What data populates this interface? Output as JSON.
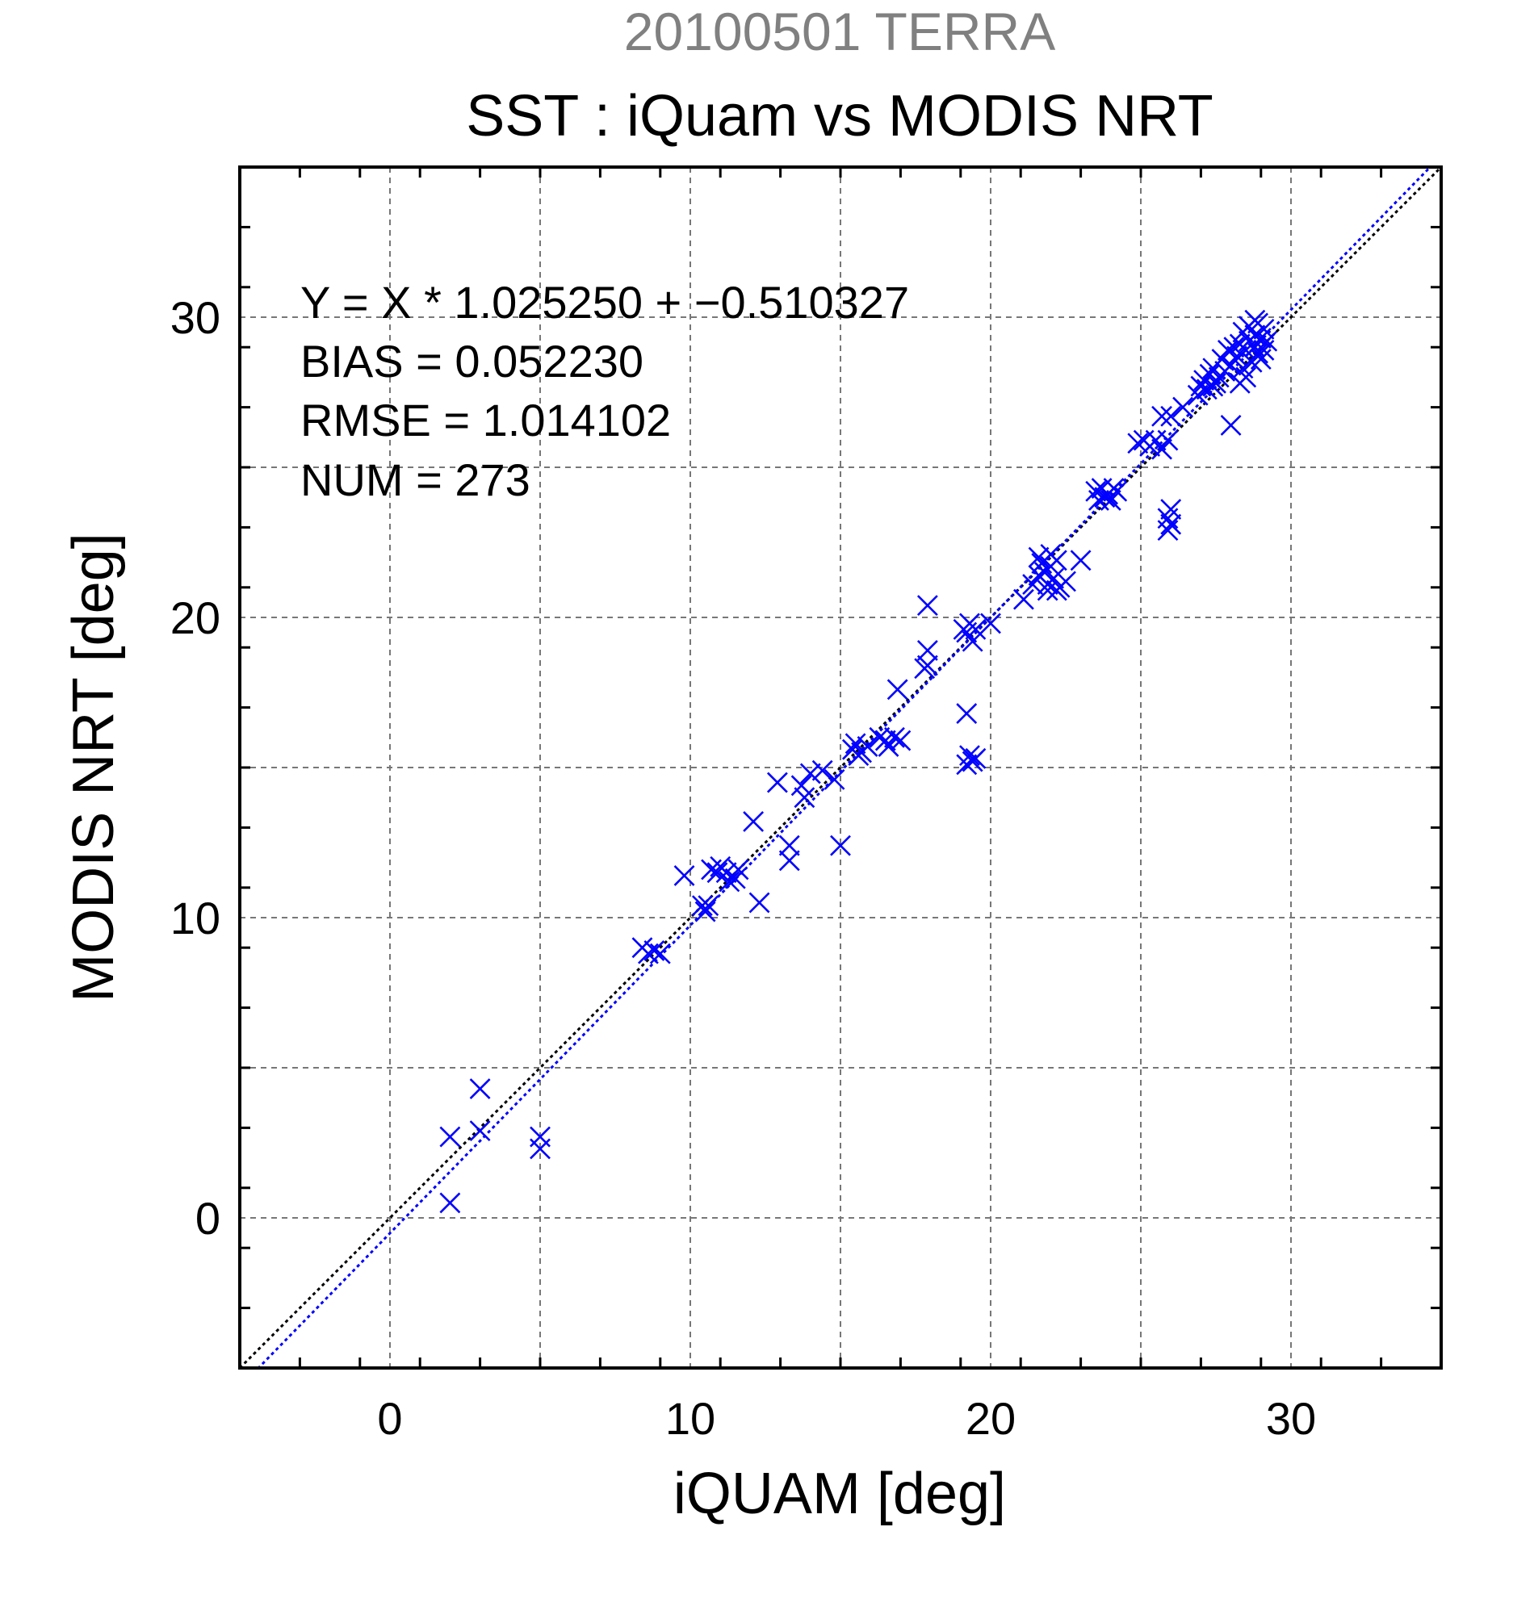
{
  "chart_data": {
    "type": "scatter",
    "supertitle": "20100501 TERRA",
    "title": "SST : iQuam vs MODIS NRT",
    "xlabel": "iQUAM [deg]",
    "ylabel": "MODIS NRT [deg]",
    "xlim": [
      -5,
      35
    ],
    "ylim": [
      -5,
      35
    ],
    "xticks": [
      0,
      10,
      20,
      30
    ],
    "yticks": [
      0,
      10,
      20,
      30
    ],
    "xtick_labels": [
      "0",
      "10",
      "20",
      "30"
    ],
    "ytick_labels": [
      "0",
      "10",
      "20",
      "30"
    ],
    "grid": true,
    "stats": [
      "Y = X * 1.025250 + −0.510327",
      "BIAS = 0.052230",
      "RMSE = 1.014102",
      "NUM = 273"
    ],
    "reference_line": {
      "slope": 1.0,
      "intercept": 0.0,
      "color": "#000000",
      "style": "dotted"
    },
    "fit_line": {
      "slope": 1.02525,
      "intercept": -0.510327,
      "color": "#0000ff",
      "style": "dotted"
    },
    "marker": {
      "symbol": "x",
      "color": "#0000ff"
    },
    "points": [
      [
        2.0,
        2.7
      ],
      [
        2.0,
        0.5
      ],
      [
        3.0,
        4.3
      ],
      [
        3.0,
        2.9
      ],
      [
        5.0,
        2.7
      ],
      [
        5.0,
        2.3
      ],
      [
        8.4,
        9.0
      ],
      [
        8.6,
        8.8
      ],
      [
        8.8,
        8.9
      ],
      [
        9.0,
        8.8
      ],
      [
        9.8,
        11.4
      ],
      [
        10.4,
        10.4
      ],
      [
        10.5,
        10.2
      ],
      [
        10.6,
        10.4
      ],
      [
        10.7,
        11.6
      ],
      [
        10.9,
        11.5
      ],
      [
        11.0,
        11.7
      ],
      [
        11.2,
        11.5
      ],
      [
        11.3,
        11.2
      ],
      [
        11.5,
        11.3
      ],
      [
        11.6,
        11.6
      ],
      [
        12.1,
        13.2
      ],
      [
        12.3,
        10.5
      ],
      [
        12.9,
        14.5
      ],
      [
        13.3,
        12.4
      ],
      [
        13.3,
        11.9
      ],
      [
        13.7,
        14.4
      ],
      [
        13.8,
        14.0
      ],
      [
        14.0,
        14.8
      ],
      [
        14.4,
        14.9
      ],
      [
        14.8,
        14.6
      ],
      [
        15.0,
        12.4
      ],
      [
        15.4,
        15.6
      ],
      [
        15.5,
        15.8
      ],
      [
        15.6,
        15.4
      ],
      [
        15.7,
        15.5
      ],
      [
        15.9,
        15.7
      ],
      [
        16.3,
        16.0
      ],
      [
        16.5,
        15.9
      ],
      [
        16.6,
        15.7
      ],
      [
        16.8,
        16.0
      ],
      [
        17.0,
        15.9
      ],
      [
        16.9,
        17.6
      ],
      [
        17.8,
        18.3
      ],
      [
        17.9,
        18.4
      ],
      [
        17.9,
        18.9
      ],
      [
        17.9,
        20.4
      ],
      [
        19.1,
        19.6
      ],
      [
        19.2,
        19.5
      ],
      [
        19.3,
        19.8
      ],
      [
        19.4,
        19.2
      ],
      [
        19.5,
        19.6
      ],
      [
        20.0,
        19.8
      ],
      [
        19.2,
        16.8
      ],
      [
        19.2,
        15.1
      ],
      [
        19.3,
        15.4
      ],
      [
        19.4,
        15.2
      ],
      [
        19.5,
        15.3
      ],
      [
        21.1,
        20.6
      ],
      [
        21.4,
        21.1
      ],
      [
        21.6,
        21.4
      ],
      [
        21.6,
        22.0
      ],
      [
        21.7,
        21.8
      ],
      [
        21.8,
        21.5
      ],
      [
        21.9,
        21.1
      ],
      [
        21.9,
        20.9
      ],
      [
        22.0,
        21.7
      ],
      [
        22.0,
        22.1
      ],
      [
        22.1,
        21.3
      ],
      [
        22.2,
        21.9
      ],
      [
        22.2,
        20.9
      ],
      [
        22.3,
        21.0
      ],
      [
        22.5,
        21.2
      ],
      [
        23.0,
        21.9
      ],
      [
        23.5,
        24.2
      ],
      [
        23.6,
        23.9
      ],
      [
        23.7,
        24.3
      ],
      [
        23.8,
        24.0
      ],
      [
        23.9,
        24.1
      ],
      [
        24.0,
        23.9
      ],
      [
        24.1,
        24.3
      ],
      [
        24.2,
        24.2
      ],
      [
        24.9,
        25.8
      ],
      [
        25.1,
        25.9
      ],
      [
        25.3,
        25.7
      ],
      [
        25.5,
        25.9
      ],
      [
        25.7,
        25.6
      ],
      [
        25.7,
        26.7
      ],
      [
        25.9,
        25.9
      ],
      [
        26.0,
        26.7
      ],
      [
        25.9,
        23.3
      ],
      [
        25.9,
        22.9
      ],
      [
        26.0,
        23.6
      ],
      [
        26.0,
        23.1
      ],
      [
        26.4,
        27.0
      ],
      [
        26.9,
        27.4
      ],
      [
        27.0,
        27.7
      ],
      [
        27.1,
        27.9
      ],
      [
        27.2,
        27.6
      ],
      [
        27.3,
        28.1
      ],
      [
        27.4,
        27.7
      ],
      [
        27.4,
        28.3
      ],
      [
        27.5,
        27.8
      ],
      [
        27.6,
        28.0
      ],
      [
        27.7,
        28.6
      ],
      [
        27.8,
        28.2
      ],
      [
        27.9,
        28.9
      ],
      [
        28.0,
        26.4
      ],
      [
        28.0,
        28.4
      ],
      [
        28.1,
        29.0
      ],
      [
        28.2,
        28.7
      ],
      [
        28.3,
        29.1
      ],
      [
        28.4,
        28.3
      ],
      [
        28.4,
        29.5
      ],
      [
        28.5,
        28.9
      ],
      [
        28.6,
        29.7
      ],
      [
        28.6,
        29.2
      ],
      [
        28.7,
        28.5
      ],
      [
        28.8,
        29.4
      ],
      [
        28.8,
        29.0
      ],
      [
        28.9,
        29.8
      ],
      [
        28.9,
        28.8
      ],
      [
        29.0,
        29.3
      ],
      [
        29.1,
        29.6
      ],
      [
        29.1,
        28.9
      ],
      [
        29.2,
        29.2
      ],
      [
        28.5,
        28.0
      ],
      [
        28.3,
        27.8
      ],
      [
        28.8,
        29.9
      ],
      [
        29.0,
        28.6
      ]
    ]
  }
}
